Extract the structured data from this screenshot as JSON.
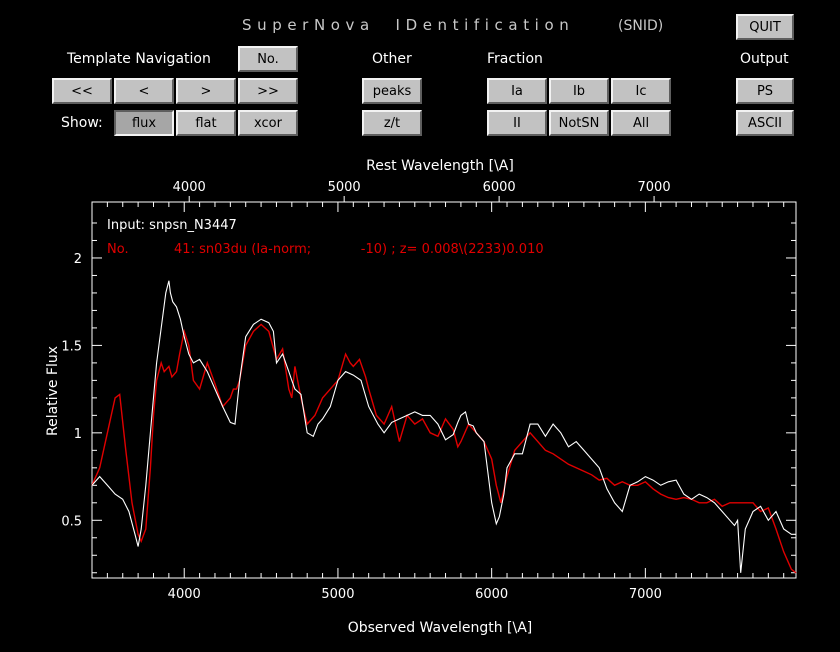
{
  "header": {
    "title": "SuperNova  IDentification",
    "title_suffix": "(SNID)"
  },
  "buttons": {
    "quit": "QUIT",
    "no": "No.",
    "first": "<<",
    "prev": "<",
    "next": ">",
    "last": ">>",
    "flux": "flux",
    "flat": "flat",
    "xcor": "xcor",
    "peaks": "peaks",
    "zt": "z/t",
    "ia": "Ia",
    "ib": "Ib",
    "ic": "Ic",
    "ii": "II",
    "notsn": "NotSN",
    "all": "All",
    "ps": "PS",
    "ascii": "ASCII"
  },
  "labels": {
    "template_navigation": "Template Navigation",
    "show": "Show:",
    "other": "Other",
    "fraction": "Fraction",
    "output": "Output"
  },
  "chart_data": {
    "type": "line",
    "top_axis_label": "Rest Wavelength [\\A]",
    "top_ticks": [
      "4000",
      "5000",
      "6000",
      "7000"
    ],
    "xlabel": "Observed Wavelength [\\A]",
    "ylabel": "Relative Flux",
    "x_ticks": [
      "4000",
      "5000",
      "6000",
      "7000"
    ],
    "y_ticks": [
      "0.5",
      "1",
      "1.5",
      "2"
    ],
    "xlim": [
      3400,
      7980
    ],
    "ylim": [
      0.17,
      2.32
    ],
    "top_axis_z": 0.0081,
    "annotation_input": "Input: snpsn_N3447",
    "annotation_match": "No.           41: sn03du (Ia-norm;            -10) ; z= 0.008\\(2233)0.010",
    "colors": {
      "input": "#ffffff",
      "template": "#e00000"
    },
    "series": [
      {
        "key": "input",
        "x": [
          3400,
          3450,
          3500,
          3550,
          3600,
          3640,
          3680,
          3700,
          3720,
          3750,
          3790,
          3820,
          3850,
          3880,
          3900,
          3910,
          3925,
          3950,
          3975,
          4000,
          4030,
          4060,
          4100,
          4150,
          4200,
          4250,
          4300,
          4330,
          4360,
          4400,
          4450,
          4500,
          4550,
          4580,
          4600,
          4640,
          4680,
          4700,
          4720,
          4760,
          4800,
          4840,
          4870,
          4900,
          4950,
          5000,
          5050,
          5100,
          5150,
          5200,
          5260,
          5300,
          5350,
          5400,
          5450,
          5500,
          5550,
          5600,
          5650,
          5700,
          5750,
          5780,
          5800,
          5830,
          5850,
          5880,
          5900,
          5950,
          6000,
          6030,
          6050,
          6080,
          6100,
          6150,
          6200,
          6250,
          6300,
          6350,
          6400,
          6450,
          6500,
          6550,
          6600,
          6650,
          6700,
          6750,
          6800,
          6850,
          6900,
          6950,
          7000,
          7050,
          7100,
          7150,
          7200,
          7250,
          7300,
          7350,
          7400,
          7450,
          7500,
          7550,
          7580,
          7600,
          7620,
          7650,
          7700,
          7750,
          7800,
          7850,
          7900,
          7950,
          7980
        ],
        "y": [
          0.7,
          0.75,
          0.7,
          0.65,
          0.62,
          0.55,
          0.42,
          0.35,
          0.45,
          0.7,
          1.1,
          1.4,
          1.6,
          1.8,
          1.87,
          1.8,
          1.75,
          1.72,
          1.65,
          1.55,
          1.45,
          1.4,
          1.42,
          1.35,
          1.25,
          1.15,
          1.06,
          1.05,
          1.3,
          1.55,
          1.62,
          1.65,
          1.63,
          1.58,
          1.4,
          1.45,
          1.35,
          1.3,
          1.25,
          1.22,
          1.0,
          0.98,
          1.05,
          1.08,
          1.15,
          1.3,
          1.35,
          1.33,
          1.3,
          1.15,
          1.05,
          1.0,
          1.06,
          1.08,
          1.1,
          1.12,
          1.1,
          1.1,
          1.05,
          0.96,
          0.99,
          1.06,
          1.1,
          1.12,
          1.05,
          1.04,
          1.0,
          0.95,
          0.6,
          0.48,
          0.52,
          0.65,
          0.8,
          0.88,
          0.88,
          1.05,
          1.05,
          0.98,
          1.05,
          1.0,
          0.92,
          0.95,
          0.9,
          0.85,
          0.8,
          0.68,
          0.6,
          0.55,
          0.7,
          0.72,
          0.75,
          0.73,
          0.7,
          0.72,
          0.73,
          0.65,
          0.62,
          0.65,
          0.63,
          0.6,
          0.55,
          0.5,
          0.47,
          0.5,
          0.2,
          0.45,
          0.55,
          0.58,
          0.5,
          0.55,
          0.45,
          0.42,
          0.42
        ]
      },
      {
        "key": "template",
        "x": [
          3400,
          3450,
          3500,
          3550,
          3580,
          3620,
          3660,
          3700,
          3720,
          3750,
          3780,
          3800,
          3820,
          3850,
          3870,
          3900,
          3920,
          3950,
          3970,
          4000,
          4030,
          4060,
          4100,
          4150,
          4200,
          4250,
          4300,
          4320,
          4340,
          4360,
          4400,
          4450,
          4500,
          4550,
          4600,
          4640,
          4680,
          4700,
          4720,
          4760,
          4800,
          4850,
          4900,
          4950,
          5000,
          5050,
          5080,
          5100,
          5140,
          5180,
          5200,
          5250,
          5300,
          5350,
          5400,
          5450,
          5500,
          5550,
          5600,
          5650,
          5700,
          5750,
          5780,
          5800,
          5850,
          5900,
          5950,
          6000,
          6030,
          6060,
          6100,
          6150,
          6200,
          6250,
          6300,
          6350,
          6400,
          6450,
          6500,
          6550,
          6600,
          6650,
          6700,
          6750,
          6800,
          6850,
          6900,
          6950,
          7000,
          7050,
          7100,
          7150,
          7200,
          7250,
          7300,
          7350,
          7400,
          7450,
          7500,
          7550,
          7600,
          7650,
          7700,
          7750,
          7800,
          7850,
          7900,
          7950,
          7980
        ],
        "y": [
          0.7,
          0.8,
          1.0,
          1.2,
          1.22,
          0.9,
          0.6,
          0.42,
          0.38,
          0.45,
          0.8,
          1.1,
          1.3,
          1.4,
          1.35,
          1.38,
          1.32,
          1.35,
          1.45,
          1.58,
          1.5,
          1.3,
          1.25,
          1.4,
          1.28,
          1.15,
          1.2,
          1.25,
          1.25,
          1.3,
          1.5,
          1.58,
          1.62,
          1.58,
          1.42,
          1.48,
          1.25,
          1.2,
          1.38,
          1.2,
          1.05,
          1.1,
          1.2,
          1.25,
          1.3,
          1.45,
          1.4,
          1.38,
          1.42,
          1.32,
          1.25,
          1.1,
          1.05,
          1.15,
          0.95,
          1.1,
          1.05,
          1.08,
          1.0,
          0.98,
          1.08,
          1.02,
          0.92,
          0.95,
          1.05,
          1.0,
          0.95,
          0.85,
          0.7,
          0.6,
          0.75,
          0.9,
          0.95,
          1.0,
          0.95,
          0.9,
          0.88,
          0.85,
          0.82,
          0.8,
          0.78,
          0.76,
          0.73,
          0.74,
          0.7,
          0.72,
          0.7,
          0.7,
          0.72,
          0.68,
          0.65,
          0.63,
          0.62,
          0.63,
          0.62,
          0.6,
          0.6,
          0.62,
          0.58,
          0.6,
          0.6,
          0.6,
          0.6,
          0.55,
          0.57,
          0.45,
          0.32,
          0.22,
          0.2
        ]
      }
    ]
  }
}
